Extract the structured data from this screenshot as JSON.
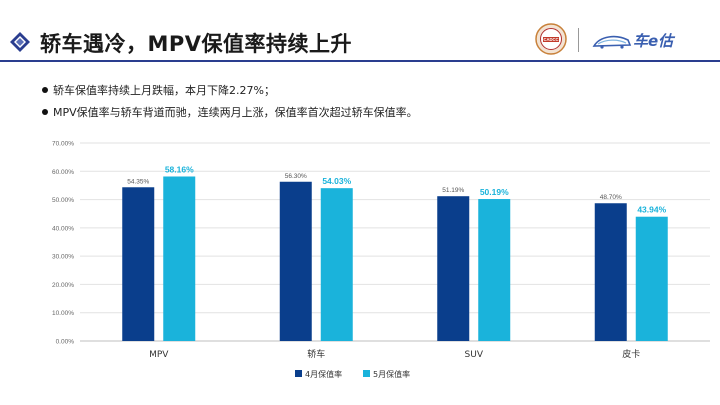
{
  "header": {
    "title": "轿车遇冷，MPV保值率持续上升",
    "seal_text": "CADCC",
    "brand_name": "车e估"
  },
  "bullets": [
    "轿车保值率持续上月跌幅，本月下降2.27%；",
    "MPV保值率与轿车背道而驰，连续两月上涨，保值率首次超过轿车保值率。"
  ],
  "colors": {
    "series_1": "#0a3e8c",
    "series_2": "#1ab3db",
    "accent": "#2a3d8f"
  },
  "chart_data": {
    "type": "bar",
    "categories": [
      "MPV",
      "轿车",
      "SUV",
      "皮卡"
    ],
    "series": [
      {
        "name": "4月保值率",
        "values": [
          54.35,
          56.3,
          51.19,
          48.7
        ],
        "labels": [
          "54.35%",
          "56.30%",
          "51.19%",
          "48.70%"
        ]
      },
      {
        "name": "5月保值率",
        "values": [
          58.16,
          54.03,
          50.19,
          43.94
        ],
        "labels": [
          "58.16%",
          "54.03%",
          "50.19%",
          "43.94%"
        ]
      }
    ],
    "ylim": [
      0,
      70
    ],
    "yticks": [
      "0.00%",
      "10.00%",
      "20.00%",
      "30.00%",
      "40.00%",
      "50.00%",
      "60.00%",
      "70.00%"
    ],
    "ytick_values": [
      0,
      10,
      20,
      30,
      40,
      50,
      60,
      70
    ],
    "grid": true,
    "legend": "bottom"
  }
}
